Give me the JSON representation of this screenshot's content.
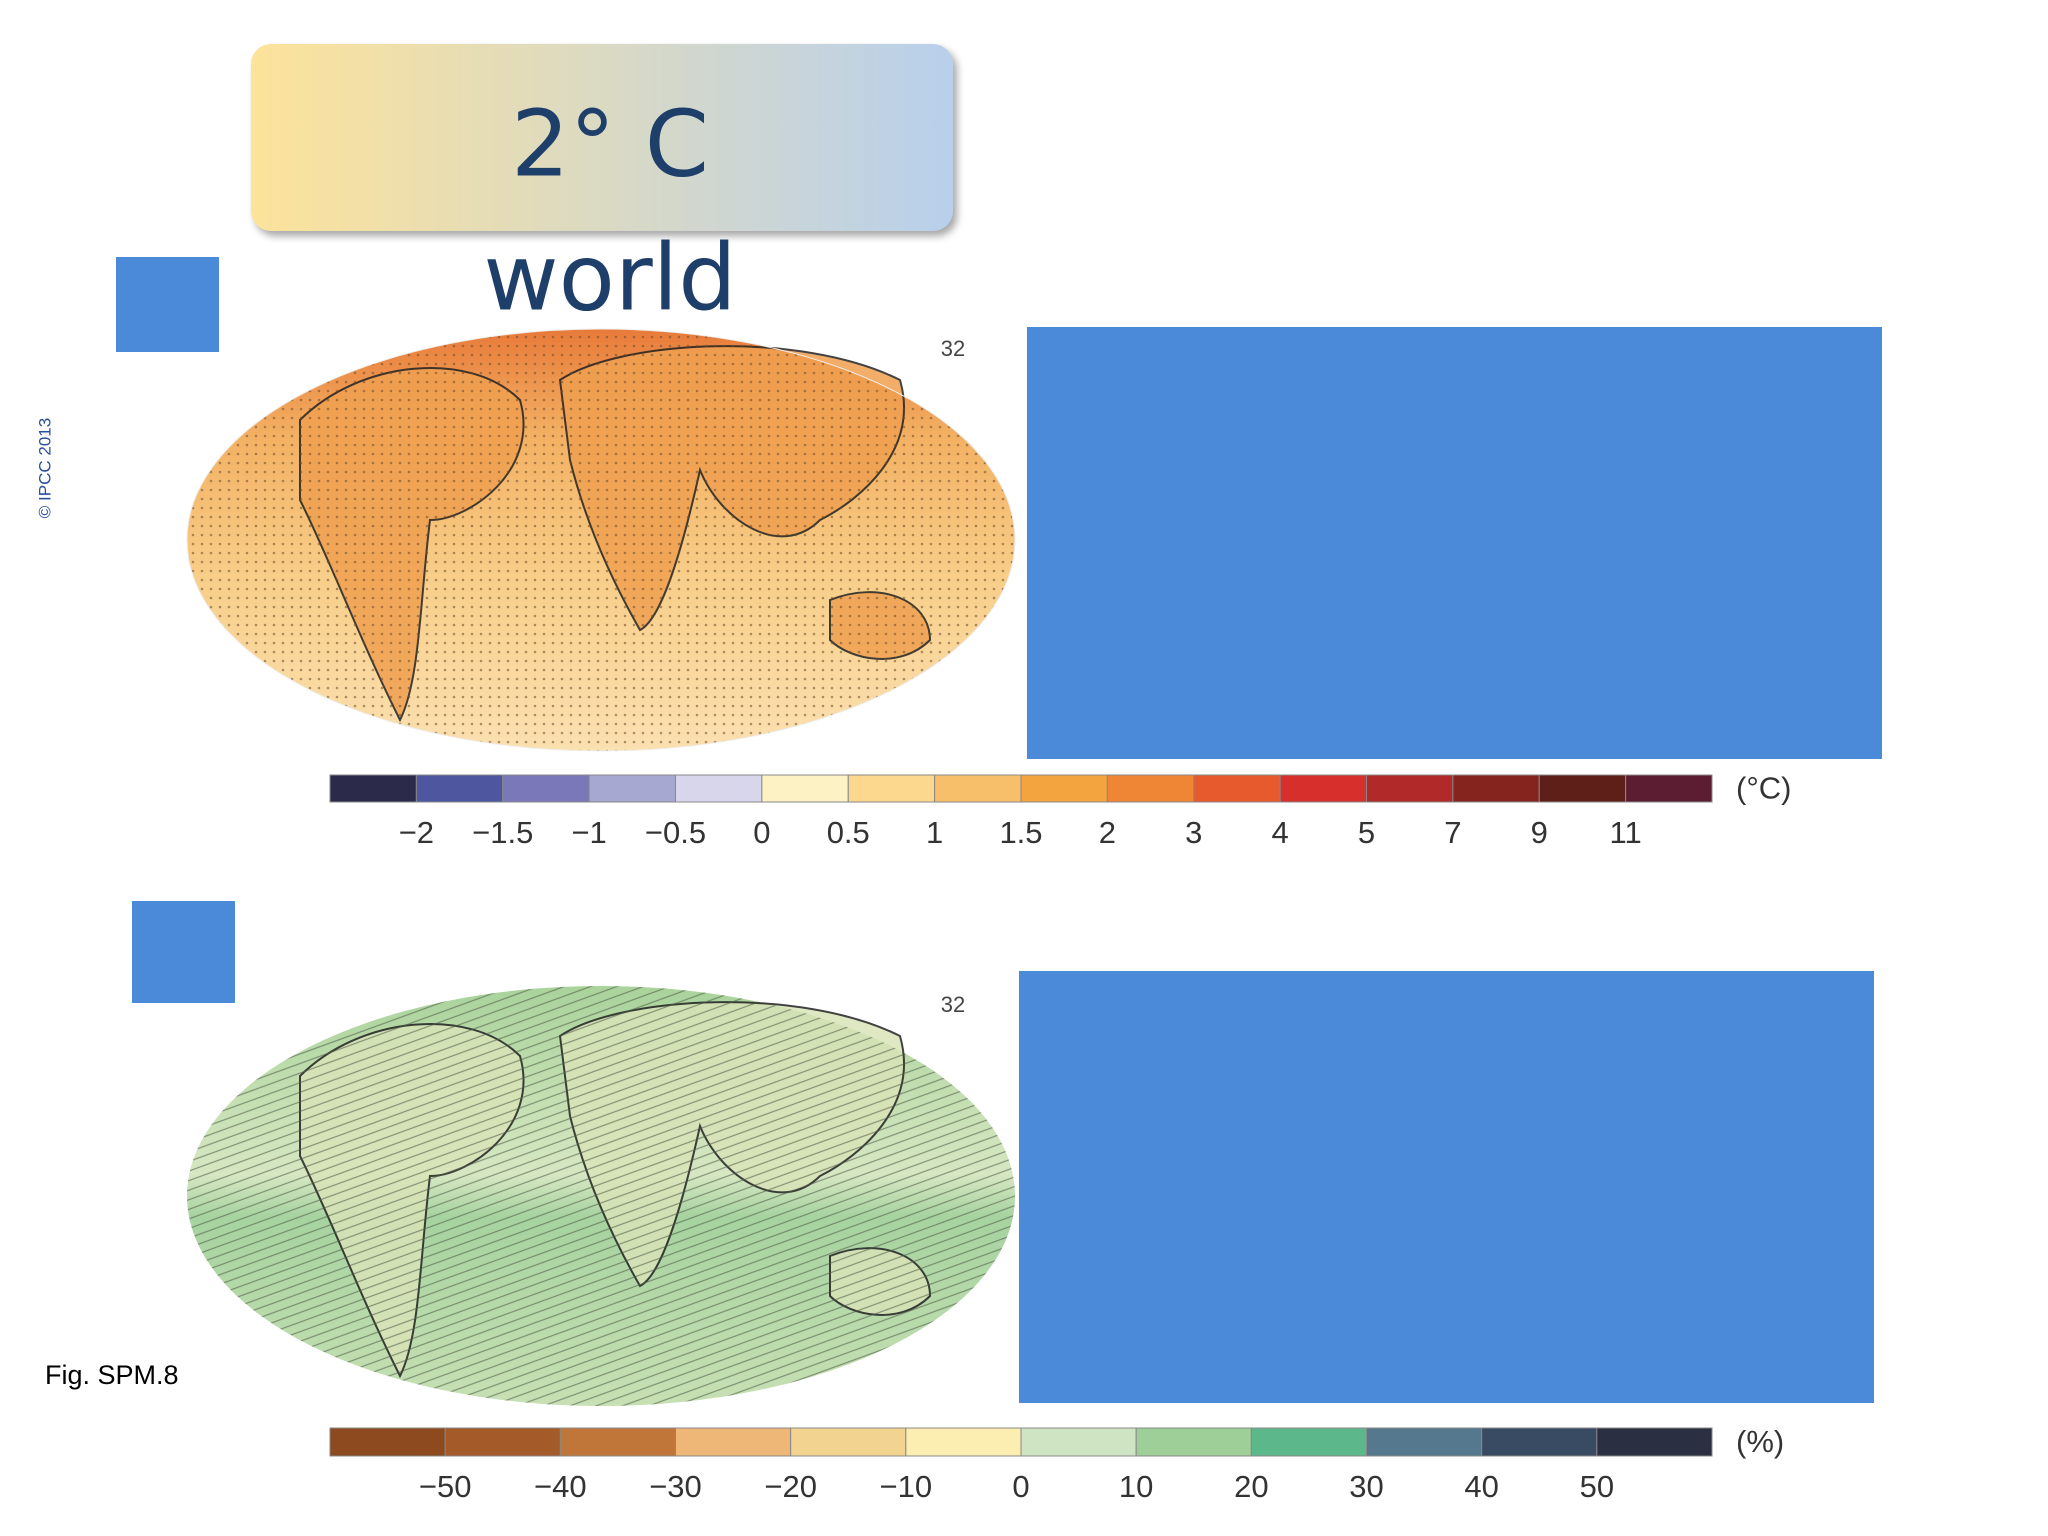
{
  "title": {
    "line1": "2° C",
    "line2": "world"
  },
  "copyright": "© IPCC 2013",
  "figure_label": "Fig. SPM.8",
  "panels": [
    {
      "map_label": "32",
      "colorbar": {
        "unit": "(°C)",
        "ticks": [
          "−2",
          "−1.5",
          "−1",
          "−0.5",
          "0",
          "0.5",
          "1",
          "1.5",
          "2",
          "3",
          "4",
          "5",
          "7",
          "9",
          "11"
        ],
        "colors": [
          "#2b2a4a",
          "#4f56a0",
          "#7a78b8",
          "#a6a8d2",
          "#d8d6ea",
          "#fdf2c4",
          "#fbd88e",
          "#f8bf6a",
          "#f3a43f",
          "#ee8636",
          "#e75a2e",
          "#d7302c",
          "#b12a29",
          "#85231f",
          "#5e1f19",
          "#5c1d33"
        ]
      }
    },
    {
      "map_label": "32",
      "colorbar": {
        "unit": "(%)",
        "ticks": [
          "−50",
          "−40",
          "−30",
          "−20",
          "−10",
          "0",
          "10",
          "20",
          "30",
          "40",
          "50"
        ],
        "colors": [
          "#8c4a1e",
          "#a55a2a",
          "#c07638",
          "#eeb777",
          "#f3d390",
          "#fbeeb0",
          "#cfe4c2",
          "#9ecf98",
          "#5cb88a",
          "#55788f",
          "#394b62",
          "#2a2f42"
        ]
      }
    }
  ]
}
